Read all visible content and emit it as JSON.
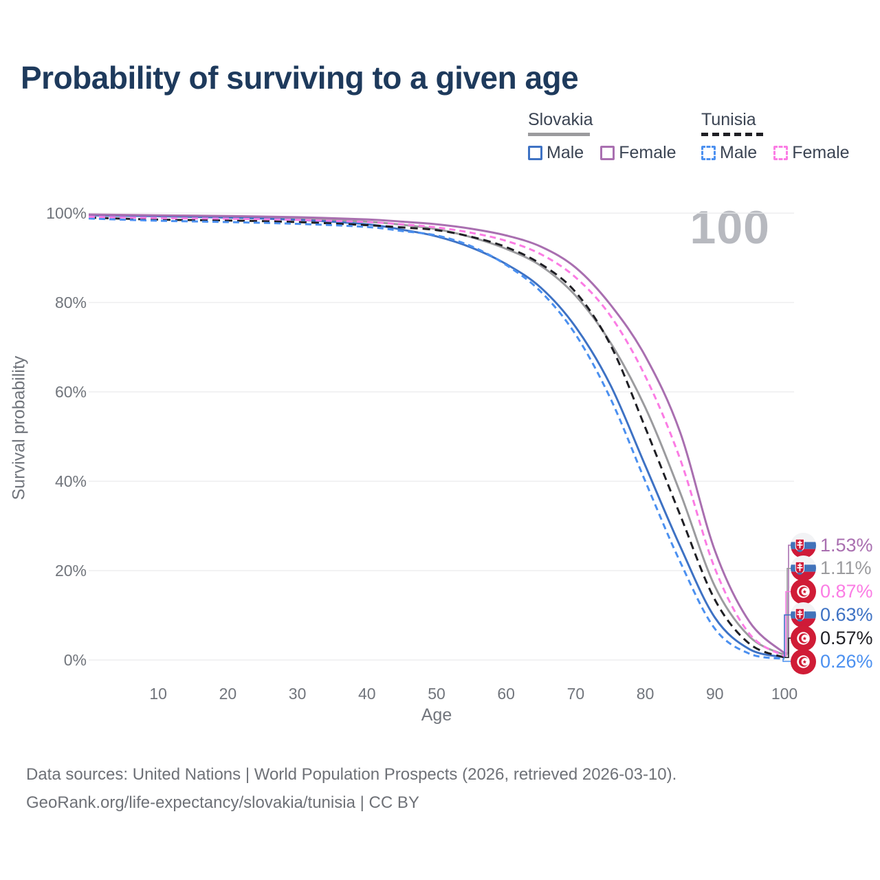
{
  "title": "Probability of surviving to a given age",
  "watermark_age": "100",
  "legend": {
    "groups": [
      {
        "country": "Slovakia",
        "line_style": "solid",
        "underline_color": "#9b9b9e",
        "items": [
          {
            "label": "Male",
            "color": "#3e72c4",
            "dash": false
          },
          {
            "label": "Female",
            "color": "#a96fb0",
            "dash": false
          }
        ]
      },
      {
        "country": "Tunisia",
        "line_style": "dashed",
        "underline_color": "#1f1f24",
        "items": [
          {
            "label": "Male",
            "color": "#4b90f0",
            "dash": true
          },
          {
            "label": "Female",
            "color": "#fb7ce4",
            "dash": true
          }
        ]
      }
    ]
  },
  "chart_data": {
    "type": "line",
    "title": "Probability of surviving to a given age",
    "xlabel": "Age",
    "ylabel": "Survival probability",
    "xlim": [
      0,
      100
    ],
    "ylim": [
      0,
      100
    ],
    "grid": "horizontal",
    "xticks": [
      10,
      20,
      30,
      40,
      50,
      60,
      70,
      80,
      90,
      100
    ],
    "yticks": [
      {
        "value": 0,
        "label": "0%"
      },
      {
        "value": 20,
        "label": "20%"
      },
      {
        "value": 40,
        "label": "40%"
      },
      {
        "value": 60,
        "label": "60%"
      },
      {
        "value": 80,
        "label": "80%"
      },
      {
        "value": 100,
        "label": "100%"
      }
    ],
    "x": [
      0,
      10,
      20,
      30,
      40,
      45,
      50,
      55,
      60,
      65,
      70,
      75,
      80,
      85,
      90,
      95,
      100
    ],
    "series": [
      {
        "id": "slovakia_avg",
        "name": "Slovakia",
        "color": "#9b9b9e",
        "dash": false,
        "values": [
          99.6,
          99.4,
          99.2,
          98.8,
          98.1,
          97.4,
          96.4,
          94.6,
          92.0,
          88.2,
          81.5,
          71.0,
          56.5,
          37.5,
          16.5,
          5.2,
          1.11
        ]
      },
      {
        "id": "slovakia_male",
        "name": "Slovakia Male",
        "color": "#3e72c4",
        "dash": false,
        "values": [
          99.5,
          99.3,
          99.0,
          98.5,
          97.5,
          96.3,
          94.8,
          92.3,
          88.6,
          83.3,
          74.5,
          61.5,
          43.5,
          25.5,
          9.5,
          2.4,
          0.63
        ]
      },
      {
        "id": "slovakia_female",
        "name": "Slovakia Female",
        "color": "#a96fb0",
        "dash": false,
        "values": [
          99.7,
          99.5,
          99.35,
          99.1,
          98.6,
          98.1,
          97.5,
          96.5,
          95.0,
          92.5,
          87.8,
          79.5,
          68.0,
          51.0,
          24.5,
          8.5,
          1.53
        ]
      },
      {
        "id": "tunisia_avg",
        "name": "Tunisia",
        "color": "#1f1f24",
        "dash": true,
        "values": [
          99.0,
          98.55,
          98.35,
          98.0,
          97.3,
          96.8,
          96.2,
          94.7,
          92.4,
          88.6,
          82.3,
          70.5,
          52.0,
          32.5,
          13.5,
          3.6,
          0.57
        ]
      },
      {
        "id": "tunisia_male",
        "name": "Tunisia Male",
        "color": "#4b90f0",
        "dash": true,
        "values": [
          98.8,
          98.3,
          98.0,
          97.6,
          96.9,
          96.0,
          95.0,
          92.6,
          88.4,
          82.4,
          72.8,
          58.5,
          40.0,
          22.0,
          7.0,
          1.4,
          0.26
        ]
      },
      {
        "id": "tunisia_female",
        "name": "Tunisia Female",
        "color": "#fb7ce4",
        "dash": true,
        "values": [
          99.2,
          98.9,
          98.75,
          98.5,
          98.0,
          97.5,
          96.8,
          95.6,
          93.8,
          90.8,
          85.6,
          77.0,
          63.5,
          45.0,
          20.5,
          5.8,
          0.87
        ]
      }
    ],
    "end_labels": [
      {
        "flag": "slovakia",
        "series": "slovakia_female",
        "value": 1.53,
        "label": "1.53%",
        "color": "#a96fb0"
      },
      {
        "flag": "slovakia",
        "series": "slovakia_avg",
        "value": 1.11,
        "label": "1.11%",
        "color": "#9b9b9e"
      },
      {
        "flag": "tunisia",
        "series": "tunisia_female",
        "value": 0.87,
        "label": "0.87%",
        "color": "#fb7ce4"
      },
      {
        "flag": "slovakia",
        "series": "slovakia_male",
        "value": 0.63,
        "label": "0.63%",
        "color": "#3e72c4"
      },
      {
        "flag": "tunisia",
        "series": "tunisia_avg",
        "value": 0.57,
        "label": "0.57%",
        "color": "#1f1f24"
      },
      {
        "flag": "tunisia",
        "series": "tunisia_male",
        "value": 0.26,
        "label": "0.26%",
        "color": "#4b90f0"
      }
    ]
  },
  "footer": {
    "line1": "Data sources: United Nations | World Population Prospects (2026, retrieved 2026-03-10).",
    "line2": "GeoRank.org/life-expectancy/slovakia/tunisia | CC BY"
  }
}
